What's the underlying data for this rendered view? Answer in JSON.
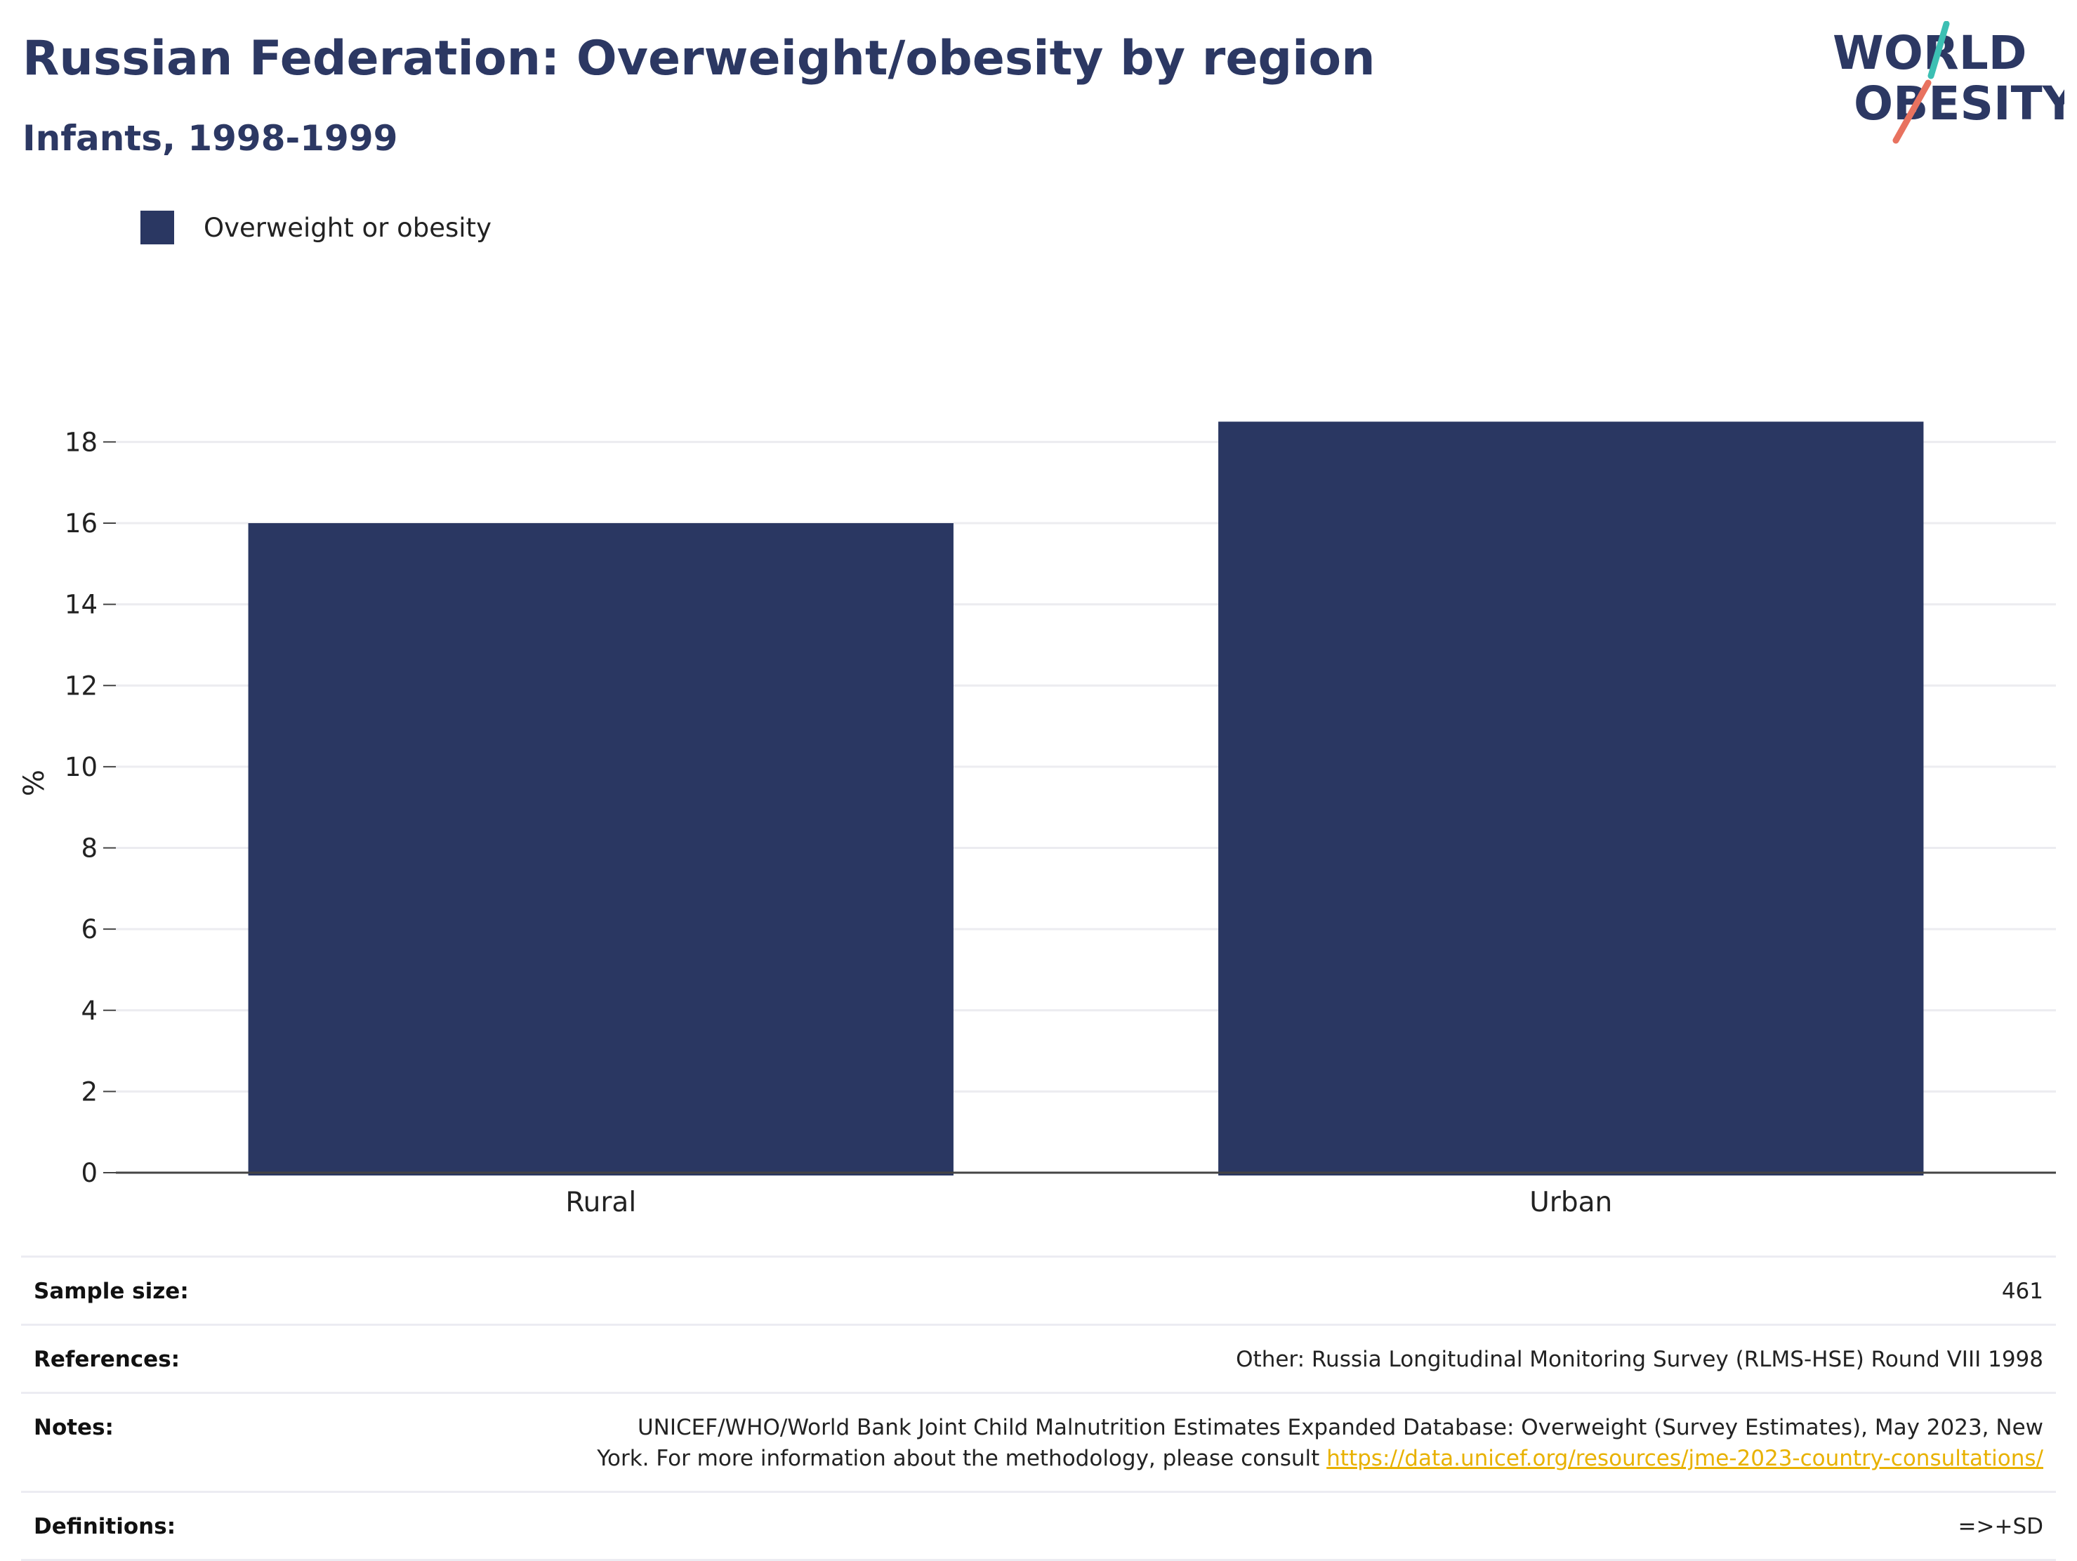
{
  "header": {
    "title": "Russian Federation: Overweight/obesity by region",
    "subtitle": "Infants, 1998-1999"
  },
  "logo": {
    "line1": "WORLD",
    "line2": "OBESITY",
    "accent_teal": "#3cbfb3",
    "accent_coral": "#e8725f",
    "text_color": "#2c3863"
  },
  "legend": {
    "items": [
      {
        "label": "Overweight or obesity",
        "color": "#2a3762"
      }
    ]
  },
  "chart_data": {
    "type": "bar",
    "categories": [
      "Rural",
      "Urban"
    ],
    "series": [
      {
        "name": "Overweight or obesity",
        "values": [
          16.0,
          18.5
        ],
        "color": "#2a3762"
      }
    ],
    "ylabel": "%",
    "xlabel": "",
    "ylim": [
      0,
      19.2
    ],
    "yticks": [
      0,
      2,
      4,
      6,
      8,
      10,
      12,
      14,
      16,
      18
    ],
    "grid": true,
    "legend_position": "top-left"
  },
  "info": {
    "sample_size_label": "Sample size:",
    "sample_size_value": "461",
    "references_label": "References:",
    "references_value": "Other: Russia Longitudinal Monitoring Survey (RLMS-HSE) Round VIII 1998",
    "notes_label": "Notes:",
    "notes_line1": "UNICEF/WHO/World Bank Joint Child Malnutrition Estimates Expanded Database: Overweight (Survey Estimates), May 2023, New",
    "notes_line2_prefix": "York. For more information about the methodology, please consult ",
    "notes_link": "https://data.unicef.org/resources/jme-2023-country-consultations/",
    "definitions_label": "Definitions:",
    "definitions_value": "=>+SD"
  }
}
